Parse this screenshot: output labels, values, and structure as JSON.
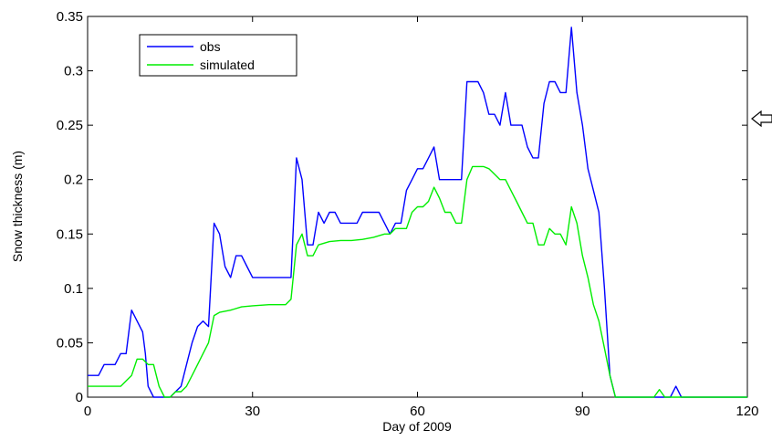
{
  "chart_data": {
    "type": "line",
    "xlabel": "Day of 2009",
    "ylabel": "Snow thickness (m)",
    "xlim": [
      0,
      120
    ],
    "ylim": [
      0,
      0.35
    ],
    "x_ticks": [
      0,
      30,
      60,
      90,
      120
    ],
    "y_ticks": [
      0,
      0.05,
      0.1,
      0.15,
      0.2,
      0.25,
      0.3,
      0.35
    ],
    "x_tick_labels": [
      "0",
      "30",
      "60",
      "90",
      "120"
    ],
    "y_tick_labels": [
      "0",
      "0.05",
      "0.1",
      "0.15",
      "0.2",
      "0.25",
      "0.3",
      "0.35"
    ],
    "grid": false,
    "legend_position": "top-left",
    "series": [
      {
        "name": "obs",
        "color": "#0000ff",
        "x": [
          0,
          2,
          3,
          5,
          6,
          7,
          7.5,
          8,
          9,
          10,
          10.5,
          11,
          12,
          13,
          14,
          15,
          16,
          17,
          18,
          19,
          20,
          21,
          22,
          23,
          24,
          25,
          26,
          27,
          28,
          29,
          30,
          31,
          32,
          33,
          34,
          35,
          36,
          37,
          38,
          39,
          40,
          41,
          42,
          43,
          44,
          45,
          46,
          47,
          48,
          49,
          50,
          51,
          52,
          53,
          54,
          55,
          56,
          57,
          58,
          59,
          60,
          61,
          62,
          63,
          64,
          65,
          66,
          67,
          68,
          69,
          70,
          71,
          72,
          73,
          74,
          75,
          76,
          77,
          78,
          79,
          80,
          81,
          82,
          83,
          84,
          85,
          86,
          87,
          88,
          89,
          90,
          91,
          92,
          93,
          94,
          95,
          96,
          97,
          100,
          104,
          106,
          107,
          108,
          109,
          110,
          112,
          115,
          118,
          120
        ],
        "y": [
          0.02,
          0.02,
          0.03,
          0.03,
          0.04,
          0.04,
          0.06,
          0.08,
          0.07,
          0.06,
          0.04,
          0.01,
          0.0,
          0.0,
          0.0,
          0.0,
          0.005,
          0.01,
          0.03,
          0.05,
          0.065,
          0.07,
          0.065,
          0.16,
          0.15,
          0.12,
          0.11,
          0.13,
          0.13,
          0.12,
          0.11,
          0.11,
          0.11,
          0.11,
          0.11,
          0.11,
          0.11,
          0.11,
          0.22,
          0.2,
          0.14,
          0.14,
          0.17,
          0.16,
          0.17,
          0.17,
          0.16,
          0.16,
          0.16,
          0.16,
          0.17,
          0.17,
          0.17,
          0.17,
          0.16,
          0.15,
          0.16,
          0.16,
          0.19,
          0.2,
          0.21,
          0.21,
          0.22,
          0.23,
          0.2,
          0.2,
          0.2,
          0.2,
          0.2,
          0.29,
          0.29,
          0.29,
          0.28,
          0.26,
          0.26,
          0.25,
          0.28,
          0.25,
          0.25,
          0.25,
          0.23,
          0.22,
          0.22,
          0.27,
          0.29,
          0.29,
          0.28,
          0.28,
          0.34,
          0.28,
          0.25,
          0.21,
          0.19,
          0.17,
          0.1,
          0.02,
          0.0,
          0.0,
          0.0,
          0.0,
          0.0,
          0.01,
          0.0,
          0.0,
          0.0,
          0.0,
          0.0,
          0.0,
          0.0
        ]
      },
      {
        "name": "simulated",
        "color": "#00ee00",
        "x": [
          0,
          6,
          7,
          8,
          9,
          10,
          11,
          12,
          13,
          14,
          15,
          16,
          17,
          18,
          19,
          20,
          21,
          22,
          23,
          24,
          26,
          28,
          30,
          33,
          35,
          36,
          37,
          38,
          39,
          40,
          41,
          42,
          44,
          46,
          48,
          50,
          52,
          54,
          55,
          56,
          57,
          58,
          59,
          60,
          61,
          62,
          63,
          64,
          65,
          66,
          67,
          68,
          69,
          70,
          72,
          73,
          74,
          75,
          76,
          77,
          78,
          79,
          80,
          81,
          82,
          83,
          84,
          85,
          86,
          87,
          88,
          89,
          90,
          91,
          92,
          93,
          94,
          95,
          96,
          100,
          103,
          104,
          105,
          108,
          112,
          116,
          120
        ],
        "y": [
          0.01,
          0.01,
          0.015,
          0.02,
          0.035,
          0.035,
          0.03,
          0.03,
          0.01,
          0.0,
          0.0,
          0.005,
          0.005,
          0.01,
          0.02,
          0.03,
          0.04,
          0.05,
          0.075,
          0.078,
          0.08,
          0.083,
          0.084,
          0.085,
          0.085,
          0.085,
          0.09,
          0.14,
          0.15,
          0.13,
          0.13,
          0.14,
          0.143,
          0.144,
          0.144,
          0.145,
          0.147,
          0.15,
          0.15,
          0.155,
          0.155,
          0.155,
          0.17,
          0.175,
          0.175,
          0.18,
          0.193,
          0.183,
          0.17,
          0.17,
          0.16,
          0.16,
          0.2,
          0.212,
          0.212,
          0.21,
          0.205,
          0.2,
          0.2,
          0.19,
          0.18,
          0.17,
          0.16,
          0.16,
          0.14,
          0.14,
          0.155,
          0.15,
          0.15,
          0.14,
          0.175,
          0.16,
          0.13,
          0.11,
          0.085,
          0.07,
          0.045,
          0.02,
          0.0,
          0.0,
          0.0,
          0.007,
          0.0,
          0.0,
          0.0,
          0.0,
          0.0
        ]
      }
    ]
  }
}
